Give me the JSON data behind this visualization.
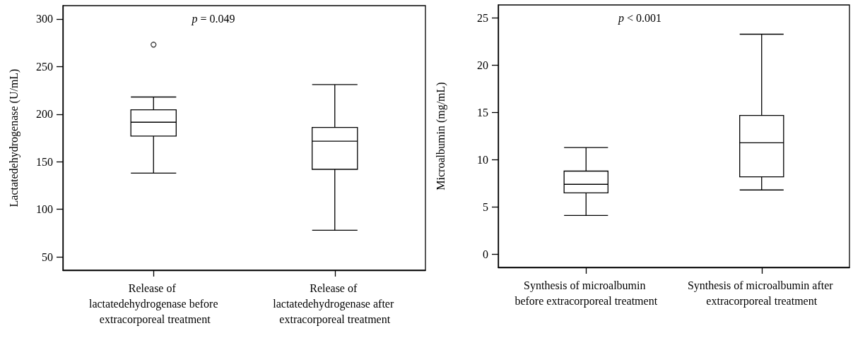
{
  "chart_data": [
    {
      "type": "box",
      "ylabel": "Lactatedehydrogenase (U/mL)",
      "categories": [
        "Release of lactatedehydrogenase before extracorporeal treatment",
        "Release of lactatedehydrogenase after extracorporeal treatment"
      ],
      "boxes": [
        {
          "low": 138,
          "q1": 177,
          "median": 191.5,
          "q3": 204.5,
          "high": 218,
          "outliers": [
            273
          ]
        },
        {
          "low": 78,
          "q1": 142,
          "median": 171.5,
          "q3": 186,
          "high": 231
        }
      ],
      "color": "#000000",
      "ylim": [
        36,
        314
      ],
      "yticks": [
        50,
        100,
        150,
        200,
        250,
        300
      ],
      "annotations": [
        "p = 0.049"
      ]
    },
    {
      "type": "box",
      "ylabel": "Microalbumin (mg/mL)",
      "categories": [
        "Synthesis of microalbumin before extracorporeal treatment",
        "Synthesis of microalbumin after extracorporeal treatment"
      ],
      "boxes": [
        {
          "low": 4.1,
          "q1": 6.5,
          "median": 7.4,
          "q3": 8.8,
          "high": 11.3
        },
        {
          "low": 6.8,
          "q1": 8.2,
          "median": 11.8,
          "q3": 14.7,
          "high": 23.3
        }
      ],
      "color": "#000000",
      "ylim": [
        -1.4,
        26.4
      ],
      "yticks": [
        0,
        5,
        10,
        15,
        20,
        25
      ],
      "annotations": [
        "p < 0.001"
      ]
    }
  ]
}
